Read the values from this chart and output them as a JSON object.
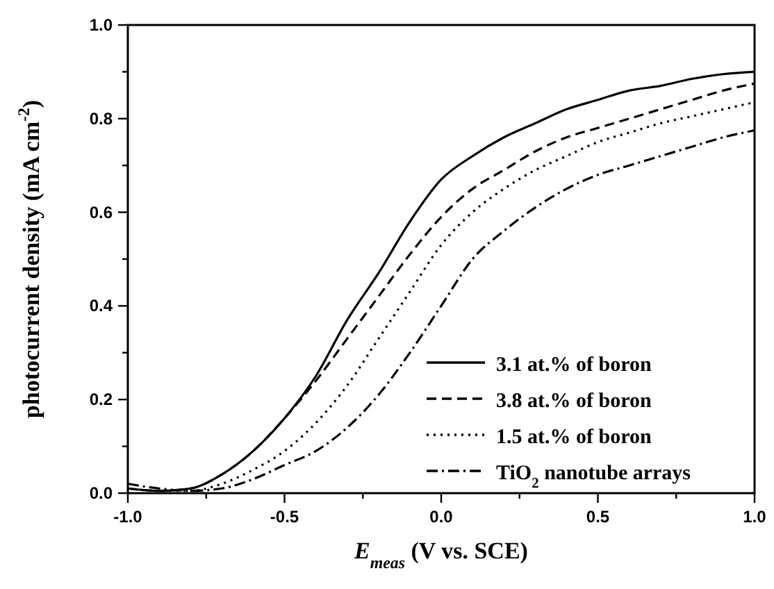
{
  "chart_data": {
    "type": "line",
    "xlabel": "E$_{meas}$ (V vs. SCE)",
    "ylabel": "photocurrent density (mA cm$^{-2}$)",
    "x": [
      -1,
      -0.9,
      -0.8,
      -0.7,
      -0.6,
      -0.5,
      -0.4,
      -0.3,
      -0.2,
      -0.1,
      0,
      0.1,
      0.2,
      0.3,
      0.4,
      0.5,
      0.6,
      0.7,
      0.8,
      0.9,
      1
    ],
    "series": [
      {
        "name": "3.1 at.% of boron",
        "color": "#000000",
        "line_style": "solid",
        "values": [
          0.01,
          0.005,
          0.01,
          0.04,
          0.09,
          0.16,
          0.25,
          0.37,
          0.47,
          0.58,
          0.67,
          0.72,
          0.76,
          0.79,
          0.82,
          0.84,
          0.86,
          0.87,
          0.885,
          0.895,
          0.9
        ]
      },
      {
        "name": "3.8 at.% of boron",
        "color": "#000000",
        "line_style": "dashed",
        "values": [
          0.01,
          0.005,
          0.01,
          0.04,
          0.09,
          0.16,
          0.24,
          0.33,
          0.42,
          0.51,
          0.59,
          0.65,
          0.69,
          0.73,
          0.76,
          0.78,
          0.8,
          0.82,
          0.84,
          0.86,
          0.875
        ]
      },
      {
        "name": "1.5 at.% of boron",
        "color": "#000000",
        "line_style": "dotted",
        "values": [
          0.01,
          0.005,
          0.005,
          0.02,
          0.05,
          0.09,
          0.15,
          0.23,
          0.33,
          0.43,
          0.53,
          0.6,
          0.65,
          0.69,
          0.72,
          0.75,
          0.77,
          0.79,
          0.805,
          0.82,
          0.835
        ]
      },
      {
        "name": "TiO$_{2}$ nanotube arrays",
        "color": "#000000",
        "line_style": "dashdot",
        "values": [
          0.02,
          0.01,
          0.005,
          0.01,
          0.03,
          0.06,
          0.09,
          0.14,
          0.21,
          0.3,
          0.4,
          0.5,
          0.56,
          0.61,
          0.65,
          0.68,
          0.7,
          0.72,
          0.74,
          0.76,
          0.775
        ]
      }
    ],
    "xlim": [
      -1,
      1
    ],
    "xticks": [
      {
        "value": -1,
        "label": "-1.0"
      },
      {
        "value": -0.75,
        "label": null
      },
      {
        "value": -0.5,
        "label": "-0.5"
      },
      {
        "value": -0.25,
        "label": null
      },
      {
        "value": 0,
        "label": "0.0"
      },
      {
        "value": 0.25,
        "label": null
      },
      {
        "value": 0.5,
        "label": "0.5"
      },
      {
        "value": 0.75,
        "label": null
      },
      {
        "value": 1,
        "label": "1.0"
      }
    ],
    "ylim": [
      0,
      1
    ],
    "yticks": [
      {
        "value": 0,
        "label": "0.0"
      },
      {
        "value": 0.1,
        "label": null
      },
      {
        "value": 0.2,
        "label": "0.2"
      },
      {
        "value": 0.3,
        "label": null
      },
      {
        "value": 0.4,
        "label": "0.4"
      },
      {
        "value": 0.5,
        "label": null
      },
      {
        "value": 0.6,
        "label": "0.6"
      },
      {
        "value": 0.7,
        "label": null
      },
      {
        "value": 0.8,
        "label": "0.8"
      },
      {
        "value": 0.9,
        "label": null
      },
      {
        "value": 1,
        "label": "1.0"
      }
    ],
    "legend": "bottom right",
    "grid": false
  }
}
